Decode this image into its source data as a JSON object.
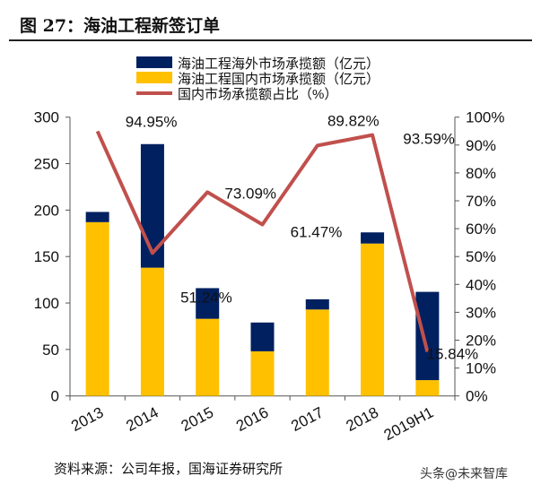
{
  "title": "图 27：海油工程新签订单",
  "source": "资料来源：公司年报，国海证券研究所",
  "watermark": "头条@未来智库",
  "chart_data": {
    "type": "bar",
    "stacked": true,
    "categories": [
      "2013",
      "2014",
      "2015",
      "2016",
      "2017",
      "2018",
      "2019H1"
    ],
    "series": [
      {
        "name": "海油工程国内市场承揽额（亿元）",
        "type": "bar",
        "axis": "left",
        "color": "#FFC000",
        "values": [
          187,
          138,
          83,
          48,
          93,
          164,
          17
        ]
      },
      {
        "name": "海油工程海外市场承揽额（亿元）",
        "type": "bar",
        "axis": "left",
        "color": "#002060",
        "values": [
          11,
          133,
          33,
          31,
          11,
          12,
          95
        ]
      },
      {
        "name": "国内市场承揽额占比（%）",
        "type": "line",
        "axis": "right",
        "color": "#C0504D",
        "values": [
          94.95,
          51.24,
          73.09,
          61.47,
          89.82,
          93.59,
          15.84
        ]
      }
    ],
    "data_labels": [
      "94.95%",
      "51.24%",
      "73.09%",
      "61.47%",
      "89.82%",
      "93.59%",
      "15.84%"
    ],
    "y_left": {
      "min": 0,
      "max": 300,
      "ticks": [
        "0",
        "50",
        "100",
        "150",
        "200",
        "250",
        "300"
      ]
    },
    "y_right": {
      "min": 0,
      "max": 100,
      "ticks": [
        "0%",
        "10%",
        "20%",
        "30%",
        "40%",
        "50%",
        "60%",
        "70%",
        "80%",
        "90%",
        "100%"
      ]
    },
    "legend_order": [
      1,
      0,
      2
    ],
    "legend_position": "top",
    "grid": false
  }
}
